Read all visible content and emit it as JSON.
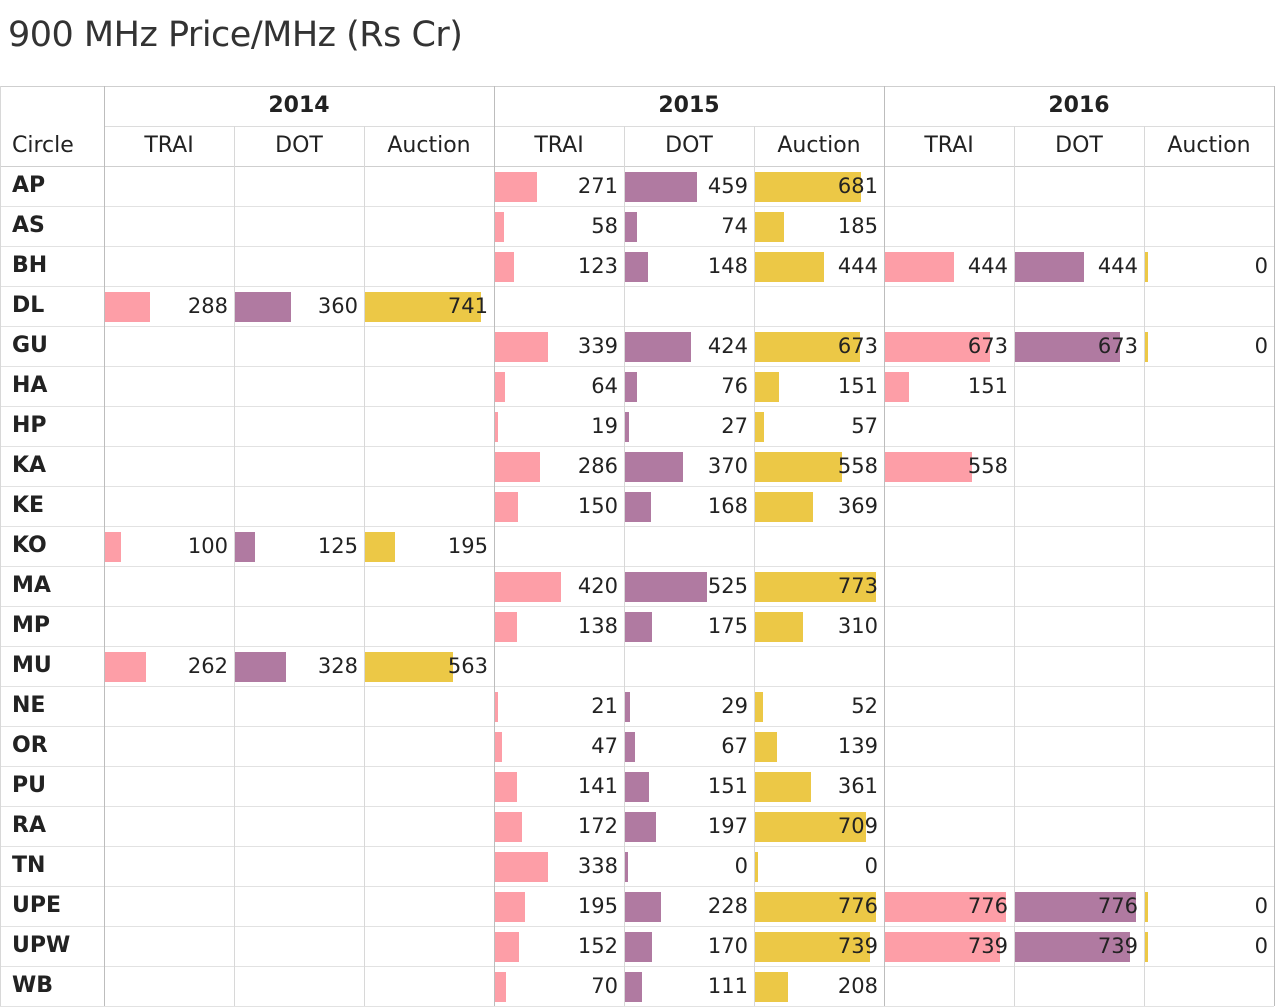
{
  "chart_data": {
    "type": "table",
    "title": "900 MHz Price/MHz (Rs Cr)",
    "row_header": "Circle",
    "years": [
      "2014",
      "2015",
      "2016"
    ],
    "measures": [
      "TRAI",
      "DOT",
      "Auction"
    ],
    "colors": {
      "TRAI": "#fd9ea7",
      "DOT": "#b07aa1",
      "Auction": "#ecc846"
    },
    "rows": [
      {
        "circle": "AP",
        "2014": [
          null,
          null,
          null
        ],
        "2015": [
          271,
          459,
          681
        ],
        "2016": [
          null,
          null,
          null
        ]
      },
      {
        "circle": "AS",
        "2014": [
          null,
          null,
          null
        ],
        "2015": [
          58,
          74,
          185
        ],
        "2016": [
          null,
          null,
          null
        ]
      },
      {
        "circle": "BH",
        "2014": [
          null,
          null,
          null
        ],
        "2015": [
          123,
          148,
          444
        ],
        "2016": [
          444,
          444,
          0
        ]
      },
      {
        "circle": "DL",
        "2014": [
          288,
          360,
          741
        ],
        "2015": [
          null,
          null,
          null
        ],
        "2016": [
          null,
          null,
          null
        ]
      },
      {
        "circle": "GU",
        "2014": [
          null,
          null,
          null
        ],
        "2015": [
          339,
          424,
          673
        ],
        "2016": [
          673,
          673,
          0
        ]
      },
      {
        "circle": "HA",
        "2014": [
          null,
          null,
          null
        ],
        "2015": [
          64,
          76,
          151
        ],
        "2016": [
          151,
          null,
          null
        ]
      },
      {
        "circle": "HP",
        "2014": [
          null,
          null,
          null
        ],
        "2015": [
          19,
          27,
          57
        ],
        "2016": [
          null,
          null,
          null
        ]
      },
      {
        "circle": "KA",
        "2014": [
          null,
          null,
          null
        ],
        "2015": [
          286,
          370,
          558
        ],
        "2016": [
          558,
          null,
          null
        ]
      },
      {
        "circle": "KE",
        "2014": [
          null,
          null,
          null
        ],
        "2015": [
          150,
          168,
          369
        ],
        "2016": [
          null,
          null,
          null
        ]
      },
      {
        "circle": "KO",
        "2014": [
          100,
          125,
          195
        ],
        "2015": [
          null,
          null,
          null
        ],
        "2016": [
          null,
          null,
          null
        ]
      },
      {
        "circle": "MA",
        "2014": [
          null,
          null,
          null
        ],
        "2015": [
          420,
          525,
          773
        ],
        "2016": [
          null,
          null,
          null
        ]
      },
      {
        "circle": "MP",
        "2014": [
          null,
          null,
          null
        ],
        "2015": [
          138,
          175,
          310
        ],
        "2016": [
          null,
          null,
          null
        ]
      },
      {
        "circle": "MU",
        "2014": [
          262,
          328,
          563
        ],
        "2015": [
          null,
          null,
          null
        ],
        "2016": [
          null,
          null,
          null
        ]
      },
      {
        "circle": "NE",
        "2014": [
          null,
          null,
          null
        ],
        "2015": [
          21,
          29,
          52
        ],
        "2016": [
          null,
          null,
          null
        ]
      },
      {
        "circle": "OR",
        "2014": [
          null,
          null,
          null
        ],
        "2015": [
          47,
          67,
          139
        ],
        "2016": [
          null,
          null,
          null
        ]
      },
      {
        "circle": "PU",
        "2014": [
          null,
          null,
          null
        ],
        "2015": [
          141,
          151,
          361
        ],
        "2016": [
          null,
          null,
          null
        ]
      },
      {
        "circle": "RA",
        "2014": [
          null,
          null,
          null
        ],
        "2015": [
          172,
          197,
          709
        ],
        "2016": [
          null,
          null,
          null
        ]
      },
      {
        "circle": "TN",
        "2014": [
          null,
          null,
          null
        ],
        "2015": [
          338,
          0,
          0
        ],
        "2016": [
          null,
          null,
          null
        ]
      },
      {
        "circle": "UPE",
        "2014": [
          null,
          null,
          null
        ],
        "2015": [
          195,
          228,
          776
        ],
        "2016": [
          776,
          776,
          0
        ]
      },
      {
        "circle": "UPW",
        "2014": [
          null,
          null,
          null
        ],
        "2015": [
          152,
          170,
          739
        ],
        "2016": [
          739,
          739,
          0
        ]
      },
      {
        "circle": "WB",
        "2014": [
          null,
          null,
          null
        ],
        "2015": [
          70,
          111,
          208
        ],
        "2016": [
          null,
          null,
          null
        ]
      }
    ]
  }
}
